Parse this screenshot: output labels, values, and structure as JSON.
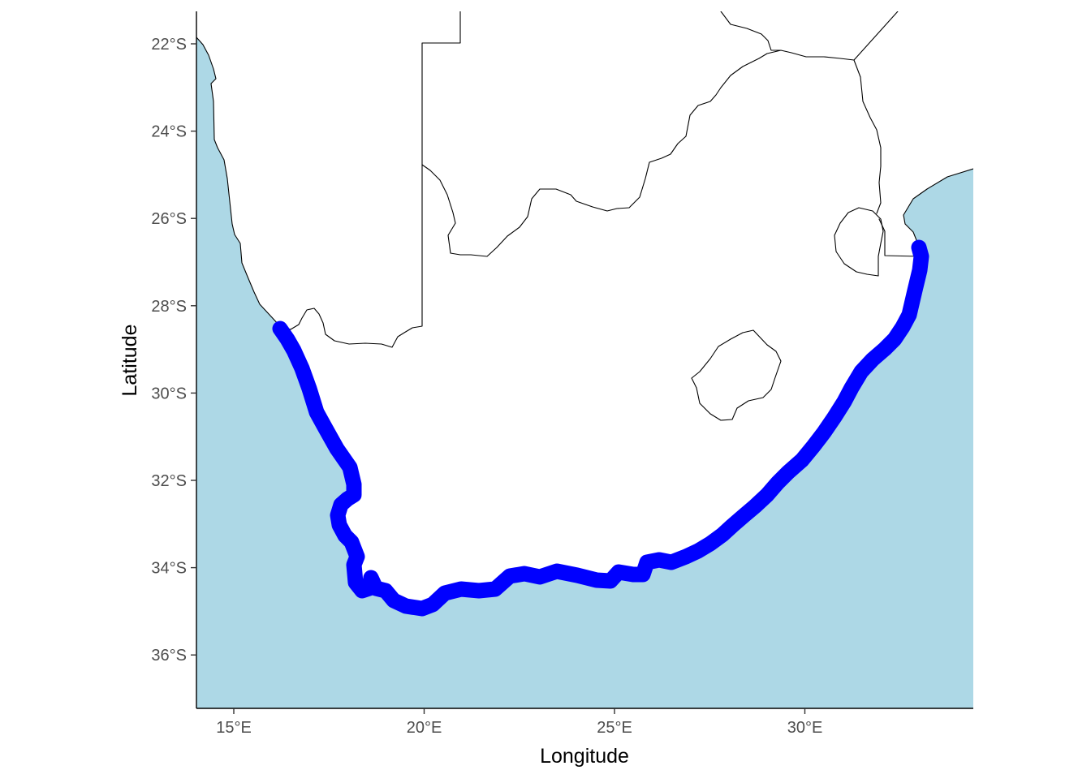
{
  "map": {
    "ocean_color": "#add8e6",
    "land_color": "#ffffff",
    "border_color": "#000000",
    "route_color": "#0000ff",
    "x_axis_title": "Longitude",
    "y_axis_title": "Latitude",
    "x_range_deg": [
      14.0,
      34.4
    ],
    "y_range_deg": [
      -37.2,
      -21.3
    ],
    "x_ticks": [
      {
        "value": 15,
        "label": "15°E"
      },
      {
        "value": 20,
        "label": "20°E"
      },
      {
        "value": 25,
        "label": "25°E"
      },
      {
        "value": 30,
        "label": "30°E"
      }
    ],
    "y_ticks": [
      {
        "value": -22,
        "label": "22°S"
      },
      {
        "value": -24,
        "label": "24°S"
      },
      {
        "value": -26,
        "label": "26°S"
      },
      {
        "value": -28,
        "label": "28°S"
      },
      {
        "value": -30,
        "label": "30°S"
      },
      {
        "value": -32,
        "label": "32°S"
      },
      {
        "value": -34,
        "label": "34°S"
      },
      {
        "value": -36,
        "label": "36°S"
      }
    ],
    "highlighted_coastline": "South Africa coastline from the Orange River mouth to the Mozambique border"
  }
}
